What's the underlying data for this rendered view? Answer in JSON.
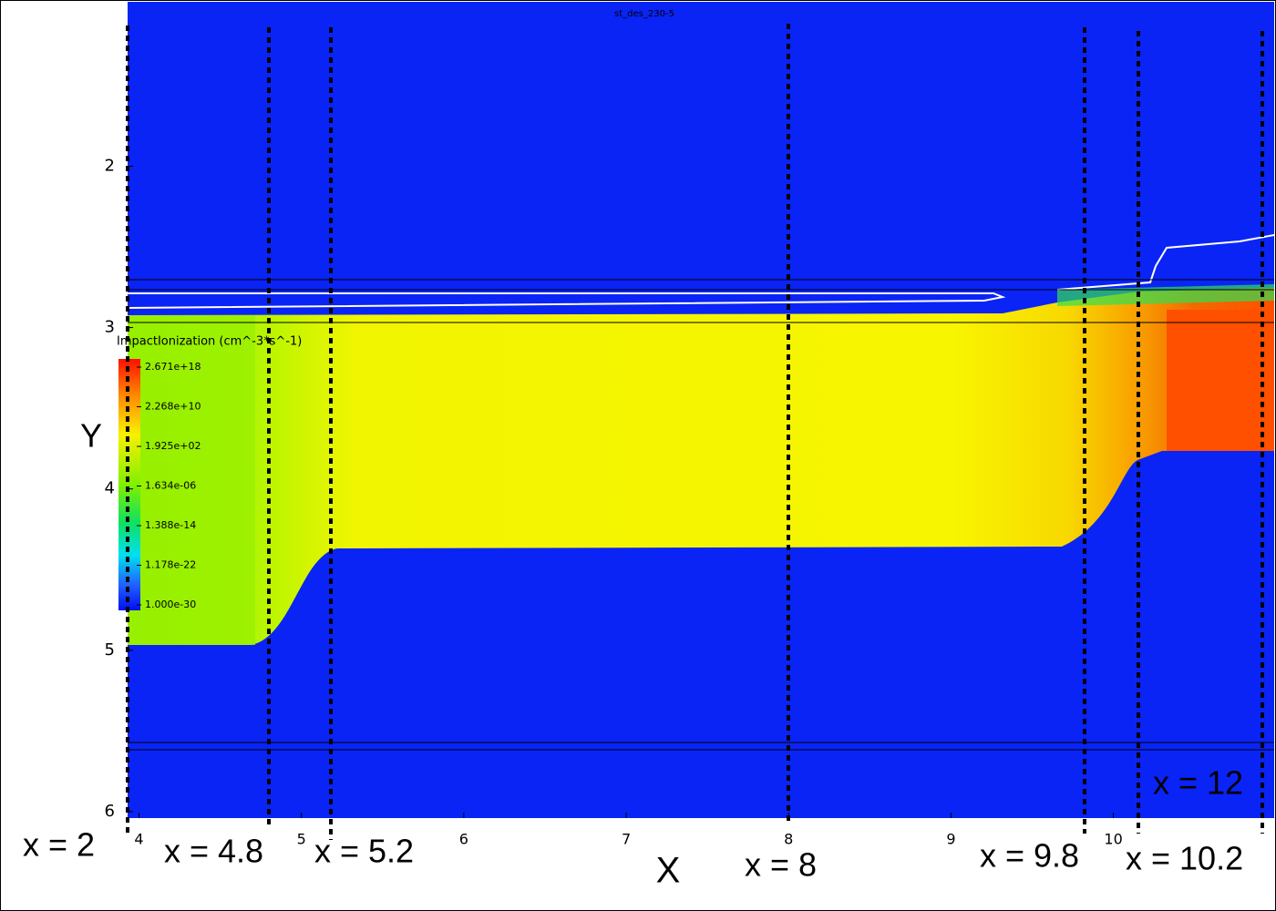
{
  "chart_data": {
    "type": "contour",
    "title": "st_des_230-5",
    "x_label": "X",
    "y_label": "Y",
    "xlim": [
      3.93,
      10.99
    ],
    "ylim": [
      0.97,
      6.04
    ],
    "xticks": [
      4,
      5,
      6,
      7,
      8,
      9,
      10
    ],
    "yticks": [
      2,
      3,
      4,
      5,
      6
    ],
    "colorbar": {
      "title": "ImpactIonization (cm^-3*s^-1)",
      "log": true,
      "clim": [
        1e-30,
        2.671e+18
      ],
      "ticks": [
        {
          "value": 2.671e+18,
          "label": "2.671e+18"
        },
        {
          "value": 22680000000.0,
          "label": "2.268e+10"
        },
        {
          "value": 192.5,
          "label": "1.925e+02"
        },
        {
          "value": 1.634e-06,
          "label": "1.634e-06"
        },
        {
          "value": 1.388e-14,
          "label": "1.388e-14"
        },
        {
          "value": 1.178e-22,
          "label": "1.178e-22"
        },
        {
          "value": 1e-30,
          "label": "1.000e-30"
        }
      ]
    },
    "annotations": [
      "x = 2",
      "x = 4.8",
      "x = 5.2",
      "x = 8",
      "x = 9.8",
      "x = 10.2",
      "x = 12"
    ]
  }
}
